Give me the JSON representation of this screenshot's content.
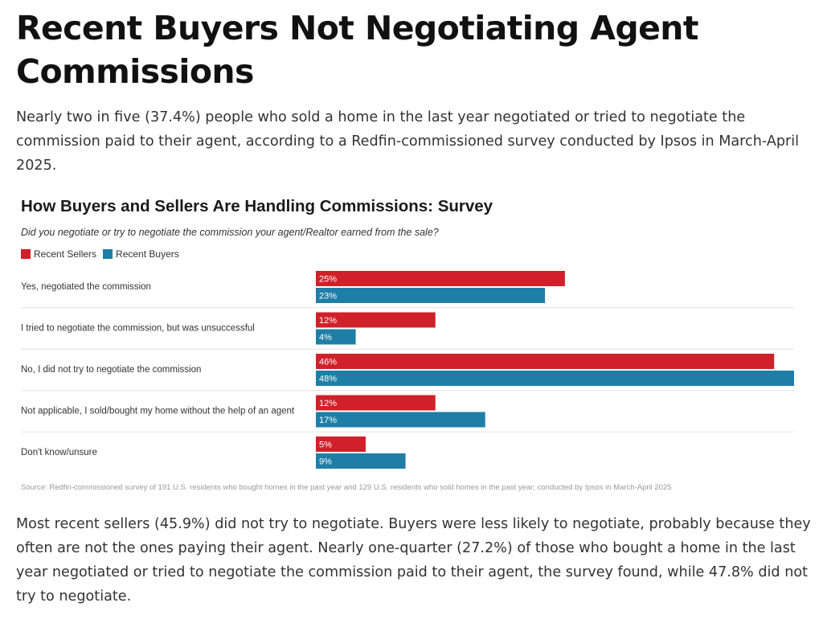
{
  "article": {
    "headline": "Recent Buyers Not Negotiating Agent Commissions",
    "intro": "Nearly two in five (37.4%) people who sold a home in the last year negotiated or tried to negotiate the commission paid to their agent, according to a Redfin-commissioned survey conducted by Ipsos in March-April 2025.",
    "followup": "Most recent sellers (45.9%) did not try to negotiate. Buyers were less likely to negotiate, probably because they often are not the ones paying their agent. Nearly one-quarter (27.2%) of those who bought a home in the last year negotiated or tried to negotiate the commission paid to their agent, the survey found, while 47.8% did not try to negotiate."
  },
  "chart_data": {
    "type": "bar",
    "orientation": "horizontal",
    "title": "How Buyers and Sellers Are Handling Commissions: Survey",
    "subtitle": "Did you negotiate or try to negotiate the commission your agent/Realtor earned from the sale?",
    "categories": [
      "Yes, negotiated the commission",
      "I tried to negotiate the commission, but was unsuccessful",
      "No, I did not try to negotiate the commission",
      "Not applicable, I sold/bought my home without the help of an agent",
      "Don't know/unsure"
    ],
    "series": [
      {
        "name": "Recent Sellers",
        "color": "#d0202a",
        "values": [
          25,
          12,
          46,
          12,
          5
        ],
        "labels": [
          "25%",
          "12%",
          "46%",
          "12%",
          "5%"
        ]
      },
      {
        "name": "Recent Buyers",
        "color": "#1e7ea6",
        "values": [
          23,
          4,
          48,
          17,
          9
        ],
        "labels": [
          "23%",
          "4%",
          "48%",
          "17%",
          "9%"
        ]
      }
    ],
    "xlim": [
      0,
      48
    ],
    "legend": "top-left",
    "grid": false,
    "source": "Source: Redfin-commissioned survey of 191 U.S. residents who bought homes in the past year and 129 U.S. residents who sold homes in the past year; conducted by Ipsos in March-April 2025"
  }
}
